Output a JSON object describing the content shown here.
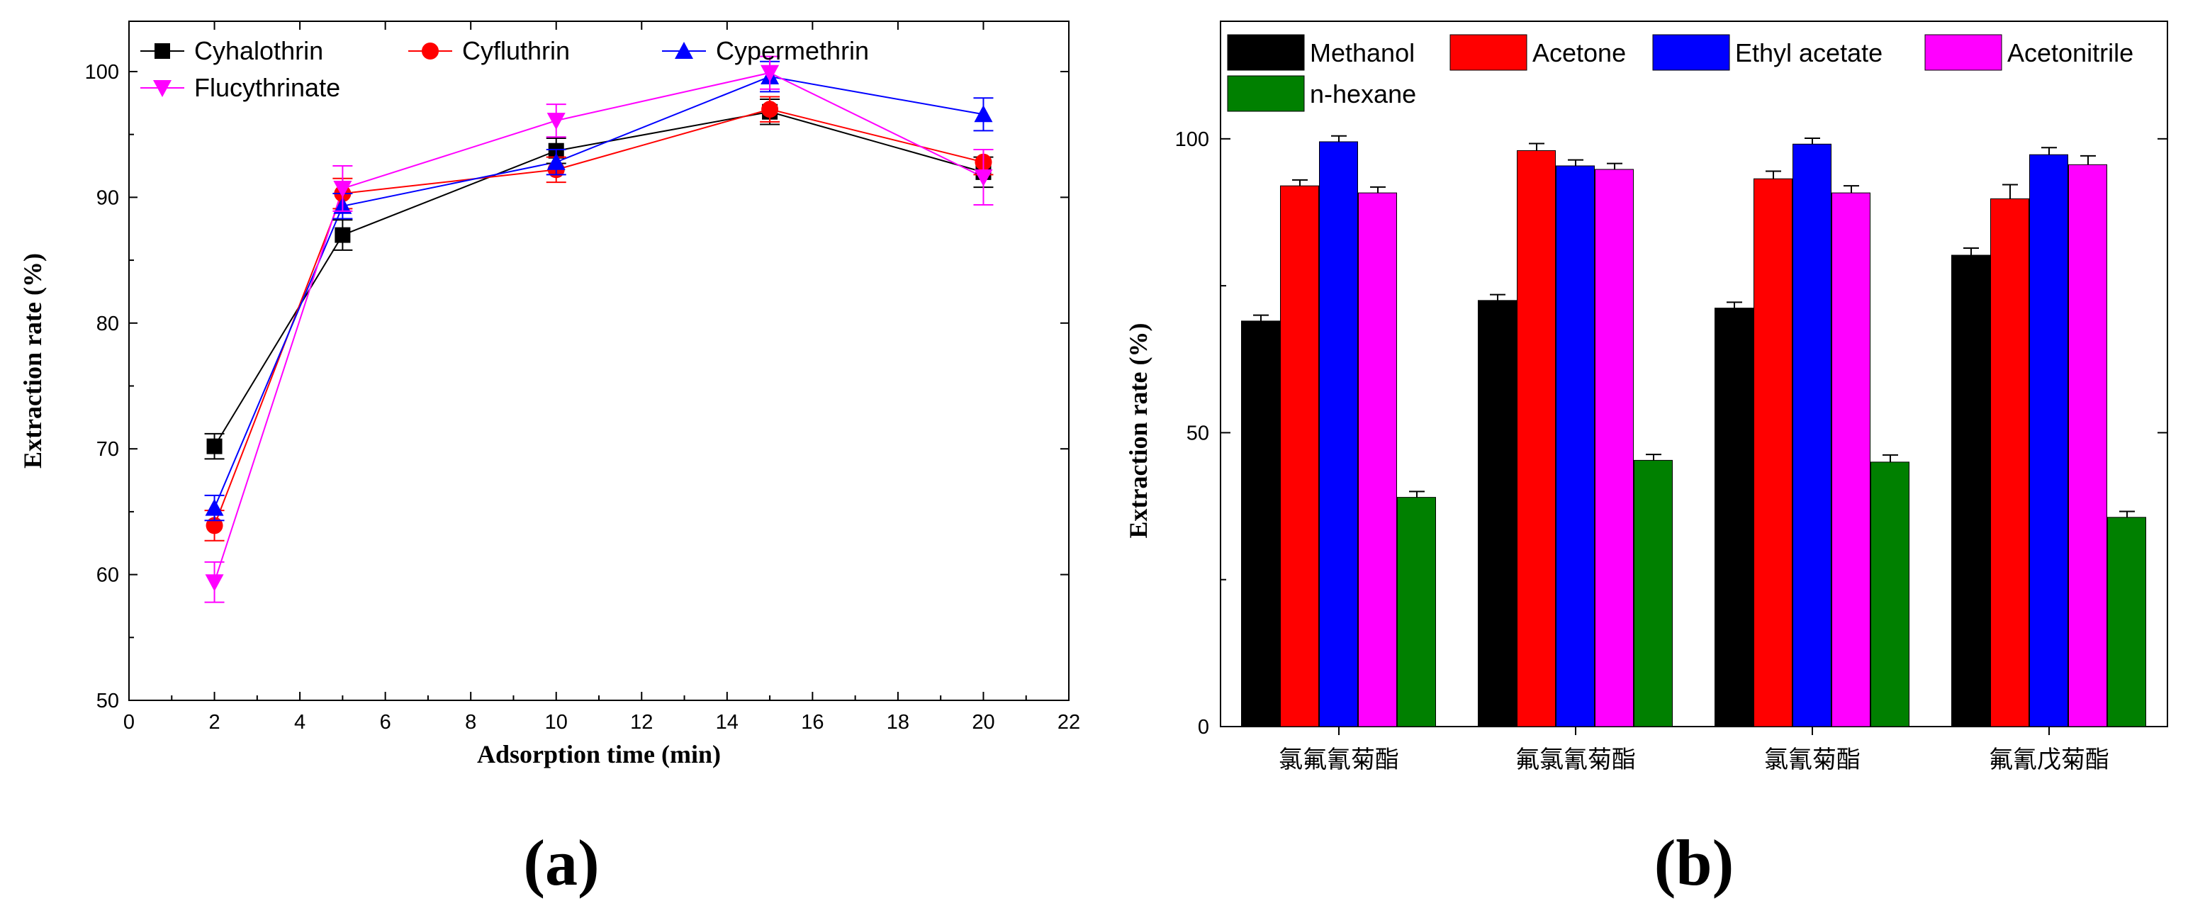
{
  "chart_data": [
    {
      "type": "line",
      "panel_label": "(a)",
      "xlabel": "Adsorption time (min)",
      "ylabel": "Extraction rate (%)",
      "xlim": [
        0,
        22
      ],
      "ylim": [
        50,
        104
      ],
      "xticks": [
        "0",
        "2",
        "4",
        "6",
        "8",
        "10",
        "12",
        "14",
        "16",
        "18",
        "20",
        "22"
      ],
      "yticks": [
        "50",
        "60",
        "70",
        "80",
        "90",
        "100"
      ],
      "x": [
        2,
        5,
        10,
        15,
        20
      ],
      "series": [
        {
          "name": "Cyhalothrin",
          "color": "#000000",
          "marker": "square",
          "values": [
            70.2,
            87.0,
            93.7,
            96.8,
            92.0
          ],
          "errors": [
            1.0,
            1.2,
            1.0,
            1.0,
            1.2
          ]
        },
        {
          "name": "Cyfluthrin",
          "color": "#ff0000",
          "marker": "circle",
          "values": [
            63.9,
            90.3,
            92.2,
            97.0,
            92.8
          ],
          "errors": [
            1.2,
            1.2,
            1.0,
            1.0,
            1.0
          ]
        },
        {
          "name": "Cypermethrin",
          "color": "#0000ff",
          "marker": "triangle-up",
          "values": [
            65.3,
            89.3,
            92.8,
            99.6,
            96.6
          ],
          "errors": [
            1.0,
            1.0,
            1.0,
            1.2,
            1.3
          ]
        },
        {
          "name": "Flucythrinate",
          "color": "#ff00ff",
          "marker": "triangle-down",
          "values": [
            59.4,
            90.7,
            96.1,
            99.9,
            91.6
          ],
          "errors": [
            1.6,
            1.8,
            1.3,
            1.3,
            2.2
          ]
        }
      ]
    },
    {
      "type": "bar",
      "panel_label": "(b)",
      "xlabel": "",
      "ylabel": "Extraction rate (%)",
      "ylim": [
        0,
        120
      ],
      "yticks": [
        "0",
        "50",
        "100"
      ],
      "categories": [
        "氯氟氰菊酯",
        "氟氯氰菊酯",
        "氯氰菊酯",
        "氟氰戊菊酯"
      ],
      "series": [
        {
          "name": "Methanol",
          "color": "#000000",
          "values": [
            69.0,
            72.5,
            71.2,
            80.2
          ],
          "errors": [
            1.0,
            1.0,
            1.0,
            1.2
          ]
        },
        {
          "name": "Acetone",
          "color": "#ff0000",
          "values": [
            92.0,
            98.0,
            93.2,
            89.8
          ],
          "errors": [
            1.0,
            1.2,
            1.3,
            2.4
          ]
        },
        {
          "name": "Ethyl acetate",
          "color": "#0000ff",
          "values": [
            99.5,
            95.4,
            99.1,
            97.3
          ],
          "errors": [
            1.0,
            1.0,
            1.0,
            1.2
          ]
        },
        {
          "name": "Acetonitrile",
          "color": "#ff00ff",
          "values": [
            90.8,
            94.8,
            90.8,
            95.6
          ],
          "errors": [
            1.0,
            1.0,
            1.2,
            1.5
          ]
        },
        {
          "name": "n-hexane",
          "color": "#008000",
          "values": [
            39.0,
            45.3,
            45.0,
            35.6
          ],
          "errors": [
            1.0,
            1.0,
            1.2,
            1.0
          ]
        }
      ]
    }
  ]
}
